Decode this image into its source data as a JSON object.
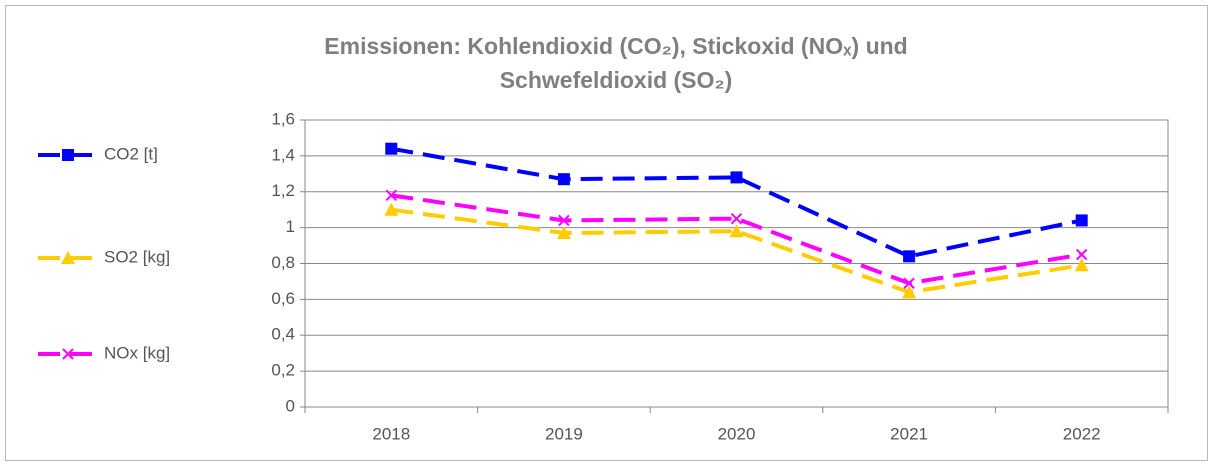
{
  "chart_data": {
    "type": "line",
    "title": [
      "Emissionen: Kohlendioxid (CO₂), Stickoxid (NOₓ) und",
      "Schwefeldioxid (SO₂)"
    ],
    "categories": [
      "2018",
      "2019",
      "2020",
      "2021",
      "2022"
    ],
    "series": [
      {
        "name": "CO2 [t]",
        "color": "#0000ff",
        "marker": "square",
        "values": [
          1.44,
          1.27,
          1.28,
          0.84,
          1.04
        ]
      },
      {
        "name": "SO2 [kg]",
        "color": "#ffcc00",
        "marker": "triangle",
        "values": [
          1.1,
          0.97,
          0.98,
          0.64,
          0.79
        ]
      },
      {
        "name": "NOx [kg]",
        "color": "#ff00ff",
        "marker": "x",
        "values": [
          1.18,
          1.04,
          1.05,
          0.69,
          0.85
        ]
      }
    ],
    "ylim": [
      0,
      1.6
    ],
    "yticks": [
      0,
      {
        "value": 0.2,
        "label": "0,2"
      },
      {
        "value": 0.4,
        "label": "0,4"
      },
      {
        "value": 0.6,
        "label": "0,6"
      },
      {
        "value": 0.8,
        "label": "0,8"
      },
      1,
      {
        "value": 1.2,
        "label": "1,2"
      },
      {
        "value": 1.4,
        "label": "1,4"
      },
      {
        "value": 1.6,
        "label": "1,6"
      }
    ],
    "grid": true,
    "legend": "left"
  }
}
